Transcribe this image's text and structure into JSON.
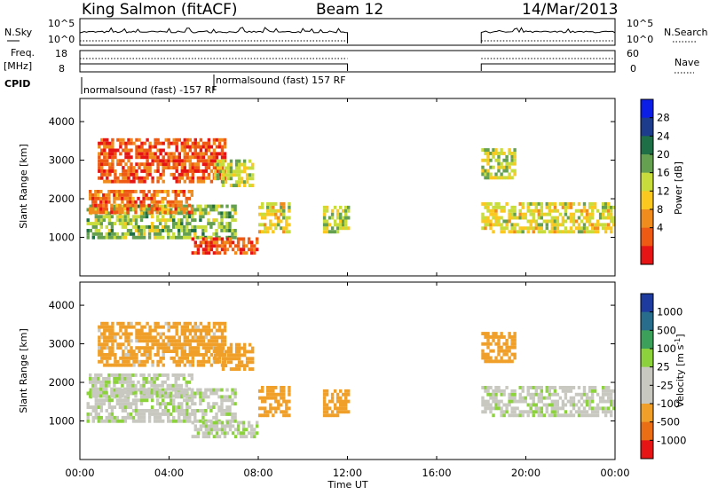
{
  "header": {
    "station": "King Salmon (fitACF)",
    "beam": "Beam 12",
    "date": "14/Mar/2013"
  },
  "panels": {
    "nsky": {
      "label": "N.Sky",
      "ticks": [
        "10^5",
        "10^0"
      ]
    },
    "nsearch": {
      "label": "N.Search",
      "ticks": [
        "10^5",
        "10^0"
      ]
    },
    "freq": {
      "label_line1": "Freq.",
      "label_line2": "[MHz]",
      "ticks": [
        "18",
        "8"
      ]
    },
    "nave": {
      "label": "Nave",
      "ticks": [
        "60",
        "0"
      ]
    },
    "cpid": {
      "label": "CPID",
      "entries": [
        "normalsound (fast) -157 RF",
        "normalsound (fast) 157 RF"
      ]
    }
  },
  "power_panel": {
    "ylabel": "Slant Range [km]",
    "yticks": [
      "4000",
      "3000",
      "2000",
      "1000"
    ],
    "colorbar_label": "Power [dB]",
    "colorbar_ticks": [
      "28",
      "24",
      "20",
      "16",
      "12",
      "8",
      "4"
    ],
    "colors": [
      "#0a1ee6",
      "#1e3c8c",
      "#1e6e46",
      "#64a050",
      "#c8dc3c",
      "#fac81e",
      "#f08c1e",
      "#ee5a14",
      "#e61414"
    ]
  },
  "velocity_panel": {
    "ylabel": "Slant Range [km]",
    "yticks": [
      "4000",
      "3000",
      "2000",
      "1000"
    ],
    "colorbar_label": "Velocity [m s",
    "colorbar_sup": "-1",
    "colorbar_ticks": [
      "1000",
      "500",
      "100",
      "25",
      "-25",
      "-100",
      "-500",
      "-1000"
    ],
    "colors": [
      "#1e3ca0",
      "#286e8c",
      "#3ca05a",
      "#8cd23c",
      "#c8c8c0",
      "#c8c8c0",
      "#f0a028",
      "#ec6e14",
      "#e61414"
    ]
  },
  "x_axis": {
    "label": "Time UT",
    "ticks": [
      "00:00",
      "04:00",
      "08:00",
      "12:00",
      "16:00",
      "20:00",
      "00:00"
    ]
  },
  "chart_data": {
    "type": "heatmap",
    "title": "King Salmon (fitACF) Beam 12 14/Mar/2013",
    "xlabel": "Time UT",
    "ylabel": "Slant Range [km]",
    "xlim": [
      "00:00",
      "24:00"
    ],
    "ylim": [
      0,
      4600
    ],
    "data_gap_hours": [
      12,
      18
    ],
    "power_colorbar": {
      "label": "Power [dB]",
      "range": [
        0,
        32
      ]
    },
    "velocity_colorbar": {
      "label": "Velocity [m s-1]",
      "levels": [
        -1000,
        -500,
        -100,
        -25,
        25,
        100,
        500,
        1000
      ]
    },
    "echo_regions": [
      {
        "t_start_h": 0.3,
        "t_end_h": 7.0,
        "range_km": [
          950,
          1800
        ],
        "power_db": 20,
        "velocity_ms": -10
      },
      {
        "t_start_h": 0.4,
        "t_end_h": 5.0,
        "range_km": [
          1600,
          2200
        ],
        "power_db": 8,
        "velocity_ms": -10
      },
      {
        "t_start_h": 0.8,
        "t_end_h": 6.5,
        "range_km": [
          2400,
          3500
        ],
        "power_db": 6,
        "velocity_ms": -150
      },
      {
        "t_start_h": 6.0,
        "t_end_h": 7.8,
        "range_km": [
          2300,
          3000
        ],
        "power_db": 18,
        "velocity_ms": -350
      },
      {
        "t_start_h": 5.0,
        "t_end_h": 8.0,
        "range_km": [
          550,
          1000
        ],
        "power_db": 6,
        "velocity_ms": -10
      },
      {
        "t_start_h": 8.0,
        "t_end_h": 9.4,
        "range_km": [
          1100,
          1900
        ],
        "power_db": 16,
        "velocity_ms": -300
      },
      {
        "t_start_h": 10.9,
        "t_end_h": 12.0,
        "range_km": [
          1100,
          1800
        ],
        "power_db": 18,
        "velocity_ms": -350
      },
      {
        "t_start_h": 18.0,
        "t_end_h": 24.0,
        "range_km": [
          1100,
          1900
        ],
        "power_db": 16,
        "velocity_ms": -10
      },
      {
        "t_start_h": 18.0,
        "t_end_h": 19.5,
        "range_km": [
          2500,
          3300
        ],
        "power_db": 18,
        "velocity_ms": -400
      }
    ]
  }
}
